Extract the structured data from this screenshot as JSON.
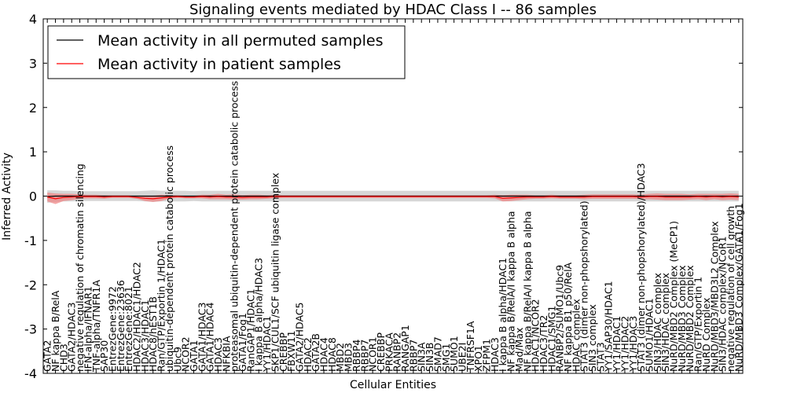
{
  "chart_data": {
    "type": "line",
    "title": "Signaling events mediated by HDAC Class I -- 86 samples",
    "xlabel": "Cellular Entities",
    "ylabel": "Inferred Activity",
    "ylim": [
      -4,
      4
    ],
    "yticks": [
      -4,
      -3,
      -2,
      -1,
      0,
      1,
      2,
      3,
      4
    ],
    "grid": false,
    "legend_position": "top-left",
    "categories": [
      "GATA2",
      "NF kappa B/RelA",
      "CHD3",
      "GATA2/HDAC3",
      "negative regulation of chromatin silencing",
      "IFN-alpha/IFNAR1",
      "TNF-alpha/TNFR1A",
      "SAP30",
      "EntrezGene:9972",
      "EntrezGene:23636",
      "EntrezGene:8021",
      "HDAC2/HDAC1/HDAC2",
      "HDAC3/HDAC1",
      "HDAC8/hEST1B",
      "Ran/GTP/Exportin 1/HDAC1",
      "ubiquitin-dependent protein catabolic process",
      "Ubc9",
      "NCOR2",
      "GATA1",
      "GATA1/HDAC3",
      "GATA1/HDAC4",
      "HDAC3",
      "NFKBIA",
      "proteasomal ubiquitin-dependent protein catabolic process",
      "GATA1/Fog1",
      "RanGAP1/HDAC1",
      "I kappa B alpha/HDAC3",
      "YY1/HDAC1",
      "SKP1/CUL1/SCF ubiquitin ligase complex",
      "CREBBP",
      "FBXW11",
      "GATA2/HDAC5",
      "HDAC2",
      "GATA2B",
      "HDAC4",
      "HDAC8",
      "MBD2",
      "MBD3",
      "RBBP4",
      "RBBP7",
      "NCOR1",
      "CREBBP",
      "PRKACA",
      "RANBP2",
      "RANGAP1",
      "RBBP7",
      "SIN3A",
      "SIN3B",
      "SMAD7",
      "SMG1",
      "SUMO1",
      "UBE2I",
      "TNFRSF1A",
      "XPO1",
      "ZFPM1",
      "HDAC3",
      "I kappa B alpha/HDAC1",
      "NF kappa B/RelA/I kappa B alpha",
      "Mad/Max",
      "NF kappa B/RelA/I kappa B alpha",
      "HDAC1/NCOR2",
      "HDAC3/TR2",
      "HDAC1/SMG1",
      "RANBP2/SUMO1/Ubc9",
      "NF kappa B1 p50/RelA",
      "HDAC complex",
      "STAT3 (dimer non-phopshorylated)",
      "SIN3 complex",
      "STAT3",
      "YY1/SAP30/HDAC1",
      "YY1/HDAC1",
      "YY1/HDAC2",
      "YY1/HDAC3",
      "STAT3 (dimer non-phopshorylated)/HDAC3",
      "SUMO1/HDAC1",
      "SIN3/HDAC complex",
      "SIN3/HDAC complex",
      "NuRD/MBD2 Complex (MeCP1)",
      "NuRD/MBD3 Complex",
      "NuRD/MBD2 Complex",
      "Ran/GTP/Exportin 1",
      "NuRD Complex",
      "NuRD/MBD3/MBD3L2 Complex",
      "SIN3/HDAC complex/NCoR1",
      "negative regulation of cell growth",
      "NuRD/MBD3 Complex/GATA1/Fog1"
    ],
    "series": [
      {
        "name": "Mean activity in all permuted samples",
        "color": "#000000",
        "band_color": "#c8c8c8",
        "values": [
          -0.01,
          0.0,
          0.0,
          0.0,
          0.0,
          0.0,
          0.0,
          0.0,
          0.0,
          0.0,
          0.0,
          0.0,
          0.0,
          0.0,
          0.0,
          0.0,
          0.0,
          0.0,
          0.0,
          0.0,
          0.0,
          0.0,
          0.0,
          0.0,
          0.0,
          0.0,
          0.0,
          0.0,
          0.0,
          0.0,
          0.0,
          0.0,
          0.0,
          0.0,
          0.0,
          0.0,
          0.0,
          0.0,
          0.0,
          0.0,
          0.0,
          0.0,
          0.0,
          0.0,
          0.0,
          0.0,
          0.0,
          0.0,
          0.0,
          0.0,
          0.0,
          0.0,
          0.0,
          0.0,
          0.0,
          0.0,
          0.0,
          0.0,
          0.0,
          0.0,
          0.0,
          0.0,
          0.0,
          0.0,
          0.0,
          0.0,
          0.0,
          0.0,
          0.0,
          0.0,
          0.0,
          0.0,
          0.0,
          0.0,
          0.0,
          0.0,
          0.0,
          0.0,
          0.0,
          0.0,
          0.0,
          0.0,
          0.0,
          0.0,
          0.0,
          0.0
        ],
        "band": [
          0.14,
          0.13,
          0.12,
          0.12,
          0.11,
          0.11,
          0.11,
          0.11,
          0.11,
          0.11,
          0.11,
          0.11,
          0.12,
          0.13,
          0.12,
          0.12,
          0.12,
          0.12,
          0.11,
          0.12,
          0.12,
          0.12,
          0.12,
          0.12,
          0.12,
          0.12,
          0.12,
          0.12,
          0.12,
          0.12,
          0.12,
          0.12,
          0.12,
          0.12,
          0.12,
          0.12,
          0.12,
          0.12,
          0.12,
          0.12,
          0.12,
          0.12,
          0.12,
          0.12,
          0.12,
          0.12,
          0.12,
          0.12,
          0.12,
          0.12,
          0.12,
          0.12,
          0.12,
          0.12,
          0.12,
          0.12,
          0.12,
          0.12,
          0.12,
          0.12,
          0.12,
          0.12,
          0.12,
          0.12,
          0.12,
          0.12,
          0.12,
          0.12,
          0.12,
          0.12,
          0.12,
          0.12,
          0.12,
          0.12,
          0.12,
          0.12,
          0.12,
          0.12,
          0.12,
          0.12,
          0.12,
          0.12,
          0.12,
          0.12,
          0.12,
          0.12
        ]
      },
      {
        "name": "Mean activity in patient samples",
        "color": "#ff0000",
        "band_color": "#f08080",
        "values": [
          -0.02,
          -0.06,
          -0.03,
          -0.02,
          -0.01,
          -0.01,
          -0.01,
          -0.02,
          -0.01,
          -0.01,
          -0.01,
          -0.03,
          -0.05,
          -0.06,
          -0.04,
          -0.02,
          -0.01,
          -0.02,
          -0.02,
          -0.01,
          -0.02,
          -0.01,
          -0.02,
          -0.02,
          -0.03,
          -0.02,
          -0.02,
          -0.02,
          -0.01,
          -0.01,
          -0.01,
          -0.01,
          -0.01,
          -0.01,
          -0.01,
          -0.01,
          -0.01,
          -0.01,
          -0.01,
          -0.01,
          -0.01,
          -0.01,
          -0.01,
          -0.01,
          -0.01,
          -0.01,
          -0.01,
          -0.01,
          -0.01,
          -0.01,
          -0.01,
          -0.01,
          -0.01,
          -0.01,
          -0.01,
          -0.01,
          -0.05,
          -0.04,
          -0.03,
          -0.02,
          -0.02,
          -0.02,
          -0.01,
          -0.02,
          -0.02,
          -0.02,
          -0.02,
          -0.01,
          -0.01,
          -0.01,
          -0.01,
          -0.01,
          -0.01,
          -0.02,
          -0.01,
          -0.01,
          -0.02,
          -0.02,
          -0.02,
          -0.02,
          -0.01,
          -0.02,
          -0.01,
          -0.02,
          -0.01,
          -0.02
        ],
        "band": [
          0.1,
          0.12,
          0.08,
          0.07,
          0.05,
          0.04,
          0.04,
          0.04,
          0.03,
          0.03,
          0.03,
          0.03,
          0.06,
          0.07,
          0.07,
          0.04,
          0.03,
          0.03,
          0.03,
          0.04,
          0.05,
          0.06,
          0.05,
          0.06,
          0.05,
          0.05,
          0.05,
          0.04,
          0.04,
          0.03,
          0.03,
          0.03,
          0.03,
          0.03,
          0.03,
          0.03,
          0.03,
          0.03,
          0.03,
          0.03,
          0.03,
          0.03,
          0.03,
          0.03,
          0.03,
          0.03,
          0.03,
          0.03,
          0.03,
          0.03,
          0.03,
          0.03,
          0.03,
          0.03,
          0.03,
          0.04,
          0.07,
          0.07,
          0.06,
          0.05,
          0.04,
          0.04,
          0.04,
          0.04,
          0.04,
          0.04,
          0.05,
          0.05,
          0.05,
          0.05,
          0.05,
          0.05,
          0.05,
          0.05,
          0.06,
          0.07,
          0.07,
          0.07,
          0.07,
          0.06,
          0.06,
          0.07,
          0.06,
          0.07,
          0.07,
          0.07
        ]
      }
    ]
  }
}
